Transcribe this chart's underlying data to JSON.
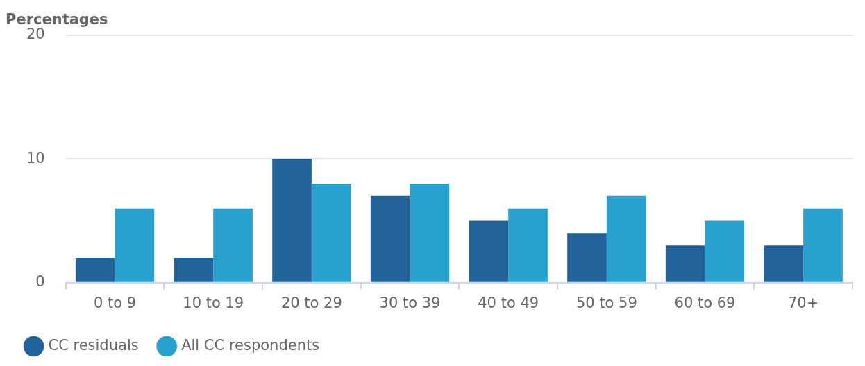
{
  "chart_data": {
    "type": "bar",
    "ylabel": "Percentages",
    "categories": [
      "0 to 9",
      "10 to 19",
      "20 to 29",
      "30 to 39",
      "40 to 49",
      "50 to 59",
      "60 to 69",
      "70+"
    ],
    "series": [
      {
        "name": "CC residuals",
        "color": "#22629a",
        "values": [
          2,
          2,
          10,
          7,
          5,
          4,
          3,
          3
        ]
      },
      {
        "name": "All CC respondents",
        "color": "#29a1cf",
        "values": [
          6,
          6,
          8,
          8,
          6,
          7,
          5,
          6
        ]
      }
    ],
    "ylim": [
      0,
      20
    ],
    "yticks": [
      0,
      10,
      20
    ],
    "grid": "y",
    "legend": "bottom left"
  }
}
